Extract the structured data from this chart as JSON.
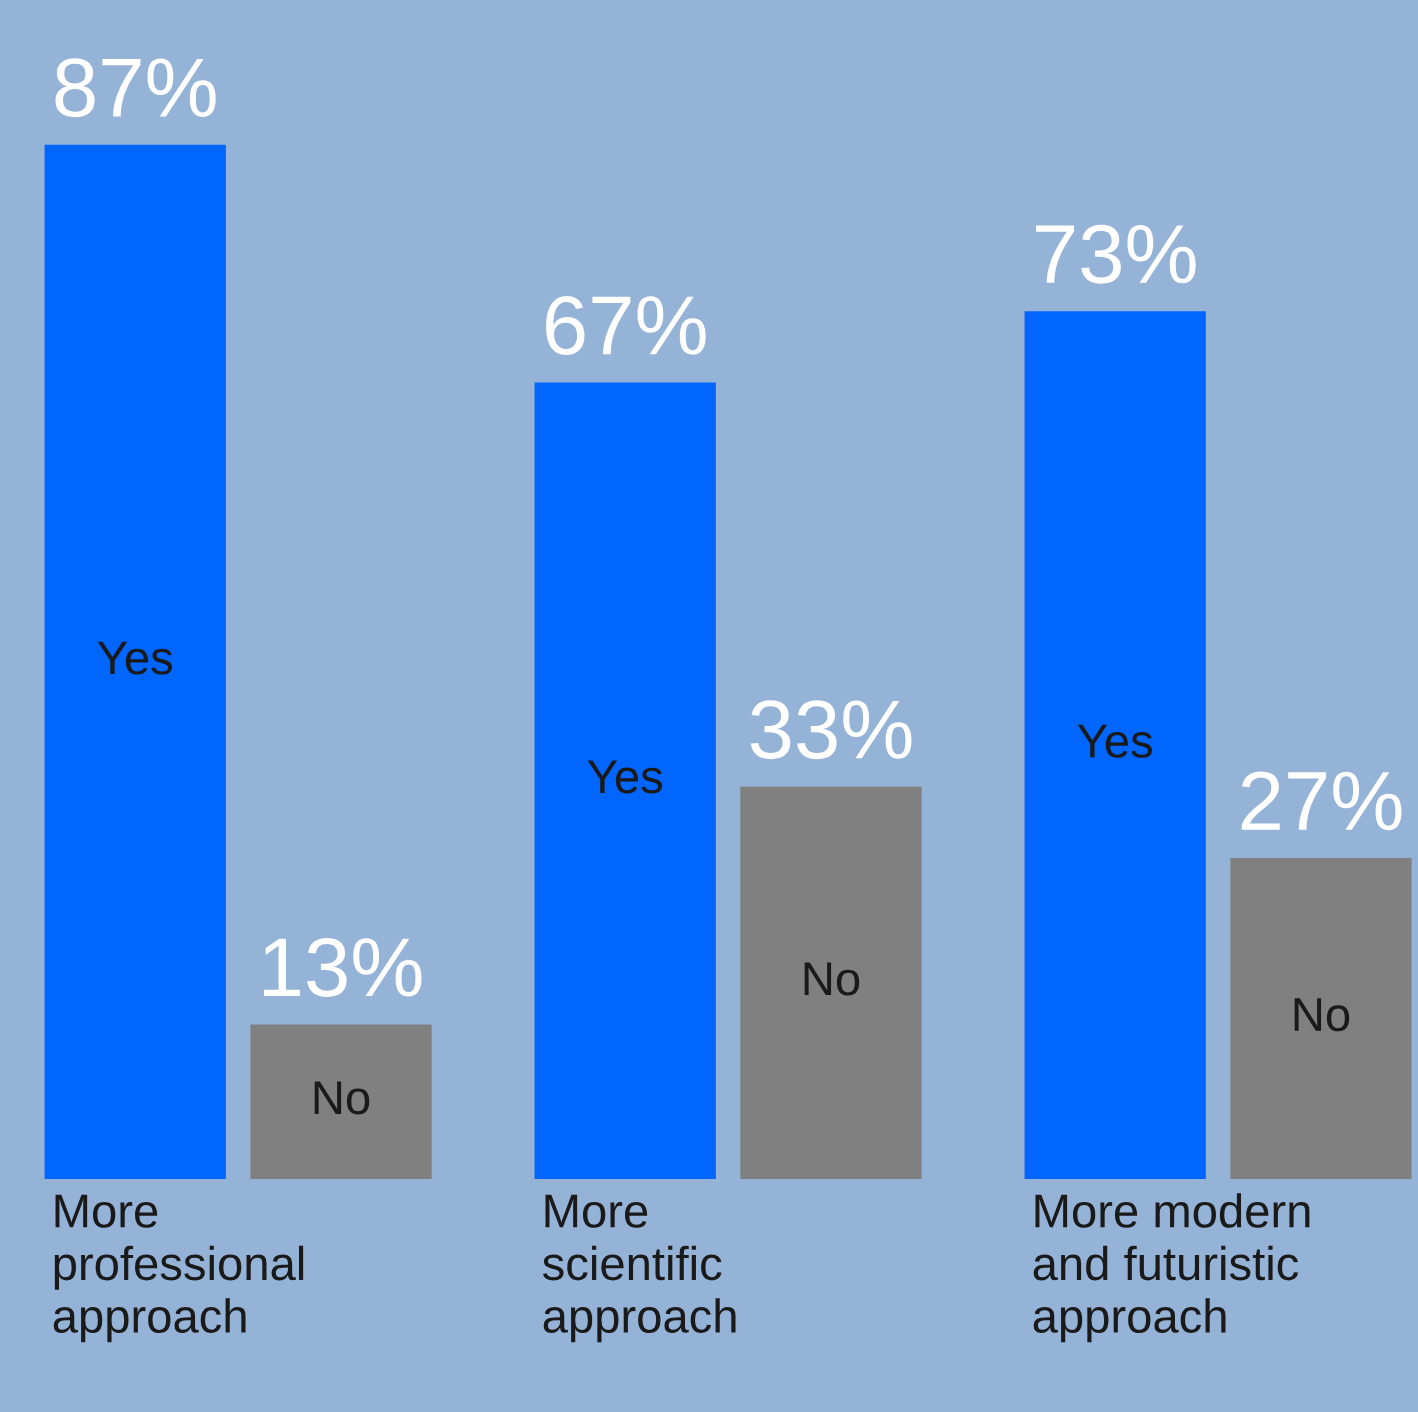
{
  "chart_data": {
    "type": "bar",
    "categories": [
      "More\nprofessional\napproach",
      "More\nscientific\napproach",
      "More modern\nand futuristic\napproach"
    ],
    "series": [
      {
        "name": "Yes",
        "color": "#0066ff",
        "values": [
          87,
          67,
          73
        ],
        "value_labels": [
          "87%",
          "67%",
          "73%"
        ]
      },
      {
        "name": "No",
        "color": "#808080",
        "values": [
          13,
          33,
          27
        ],
        "value_labels": [
          "13%",
          "33%",
          "27%"
        ]
      }
    ]
  }
}
